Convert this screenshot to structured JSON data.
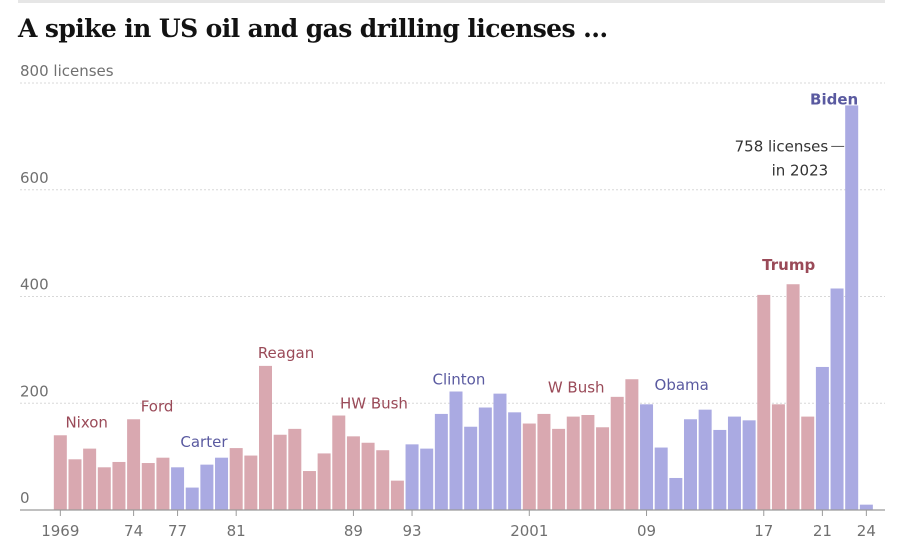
{
  "title": "A spike in US oil and gas drilling licenses …",
  "colors": {
    "republican": "#d9a8b0",
    "democrat": "#aaaae2",
    "republican_text": "#9a4a58",
    "democrat_text": "#5a5aa0",
    "grid": "#d8d8d8",
    "axis": "#9a9a9a"
  },
  "chart_data": {
    "type": "bar",
    "ylabel": "",
    "ylim": [
      0,
      800
    ],
    "y_ticks": [
      0,
      200,
      400,
      600,
      800
    ],
    "y_tick_labels": [
      "0",
      "200",
      "400",
      "600",
      "800 licenses"
    ],
    "x": [
      1969,
      1970,
      1971,
      1972,
      1973,
      1974,
      1975,
      1976,
      1977,
      1978,
      1979,
      1980,
      1981,
      1982,
      1983,
      1984,
      1985,
      1986,
      1987,
      1988,
      1989,
      1990,
      1991,
      1992,
      1993,
      1994,
      1995,
      1996,
      1997,
      1998,
      1999,
      2000,
      2001,
      2002,
      2003,
      2004,
      2005,
      2006,
      2007,
      2008,
      2009,
      2010,
      2011,
      2012,
      2013,
      2014,
      2015,
      2016,
      2017,
      2018,
      2019,
      2020,
      2021,
      2022,
      2023,
      2024
    ],
    "values": [
      140,
      95,
      115,
      80,
      90,
      170,
      88,
      98,
      80,
      42,
      85,
      98,
      116,
      102,
      270,
      141,
      152,
      73,
      106,
      177,
      138,
      126,
      112,
      55,
      123,
      115,
      180,
      222,
      156,
      192,
      218,
      183,
      162,
      180,
      152,
      175,
      178,
      155,
      212,
      245,
      198,
      117,
      60,
      170,
      188,
      150,
      175,
      168,
      403,
      198,
      423,
      175,
      268,
      415,
      758,
      10
    ],
    "party": [
      "R",
      "R",
      "R",
      "R",
      "R",
      "R",
      "R",
      "R",
      "D",
      "D",
      "D",
      "D",
      "R",
      "R",
      "R",
      "R",
      "R",
      "R",
      "R",
      "R",
      "R",
      "R",
      "R",
      "R",
      "D",
      "D",
      "D",
      "D",
      "D",
      "D",
      "D",
      "D",
      "R",
      "R",
      "R",
      "R",
      "R",
      "R",
      "R",
      "R",
      "D",
      "D",
      "D",
      "D",
      "D",
      "D",
      "D",
      "D",
      "R",
      "R",
      "R",
      "R",
      "D",
      "D",
      "D",
      "D"
    ],
    "x_tick_labels": [
      {
        "year": 1969,
        "label": "1969"
      },
      {
        "year": 1974,
        "label": "74"
      },
      {
        "year": 1977,
        "label": "77"
      },
      {
        "year": 1981,
        "label": "81"
      },
      {
        "year": 1989,
        "label": "89"
      },
      {
        "year": 1993,
        "label": "93"
      },
      {
        "year": 2001,
        "label": "2001"
      },
      {
        "year": 2009,
        "label": "09"
      },
      {
        "year": 2017,
        "label": "17"
      },
      {
        "year": 2021,
        "label": "21"
      },
      {
        "year": 2024,
        "label": "24"
      }
    ],
    "presidents": [
      {
        "name": "Nixon",
        "party": "R",
        "year": 1970.8,
        "value": 155
      },
      {
        "name": "Ford",
        "party": "R",
        "year": 1975.6,
        "value": 185
      },
      {
        "name": "Carter",
        "party": "D",
        "year": 1978.8,
        "value": 118
      },
      {
        "name": "Reagan",
        "party": "R",
        "year": 1984.4,
        "value": 285
      },
      {
        "name": "HW Bush",
        "party": "R",
        "year": 1990.4,
        "value": 190
      },
      {
        "name": "Clinton",
        "party": "D",
        "year": 1996.2,
        "value": 235
      },
      {
        "name": "W Bush",
        "party": "R",
        "year": 2004.2,
        "value": 220
      },
      {
        "name": "Obama",
        "party": "D",
        "year": 2011.4,
        "value": 225
      },
      {
        "name": "Trump",
        "party": "R",
        "year": 2018.7,
        "value": 450
      },
      {
        "name": "Biden",
        "party": "D",
        "year": 2021.8,
        "value": 760
      }
    ],
    "annotation": {
      "lines": [
        "758 licenses",
        "in 2023"
      ],
      "year": 2023,
      "value": 758
    }
  }
}
